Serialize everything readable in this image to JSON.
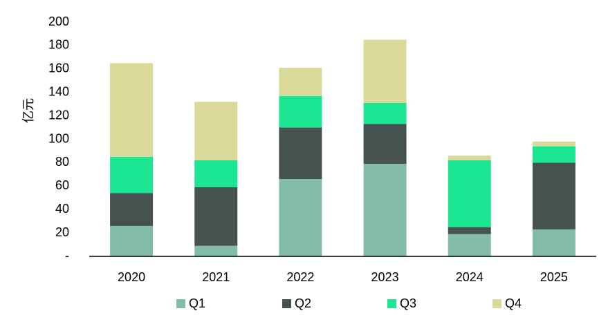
{
  "chart_data": {
    "type": "stacked_bar",
    "y_label": "亿元",
    "categories": [
      "2020",
      "2021",
      "2022",
      "2023",
      "2024",
      "2025"
    ],
    "series": [
      {
        "name": "Q1",
        "color": "#84bcac",
        "values": [
          26,
          9,
          66,
          79,
          19,
          23
        ]
      },
      {
        "name": "Q2",
        "color": "#455250",
        "values": [
          28,
          50,
          44,
          34,
          6,
          57
        ]
      },
      {
        "name": "Q3",
        "color": "#1de692",
        "values": [
          31,
          23,
          27,
          18,
          57,
          14
        ]
      },
      {
        "name": "Q4",
        "color": "#d9d99a",
        "values": [
          80,
          50,
          24,
          54,
          4,
          4
        ]
      }
    ],
    "ylim": [
      0,
      200
    ],
    "yticks": [
      {
        "value": 0,
        "label": "-"
      },
      20,
      40,
      60,
      80,
      100,
      120,
      140,
      160,
      180,
      200
    ],
    "grid": false,
    "legend": "bottom"
  }
}
